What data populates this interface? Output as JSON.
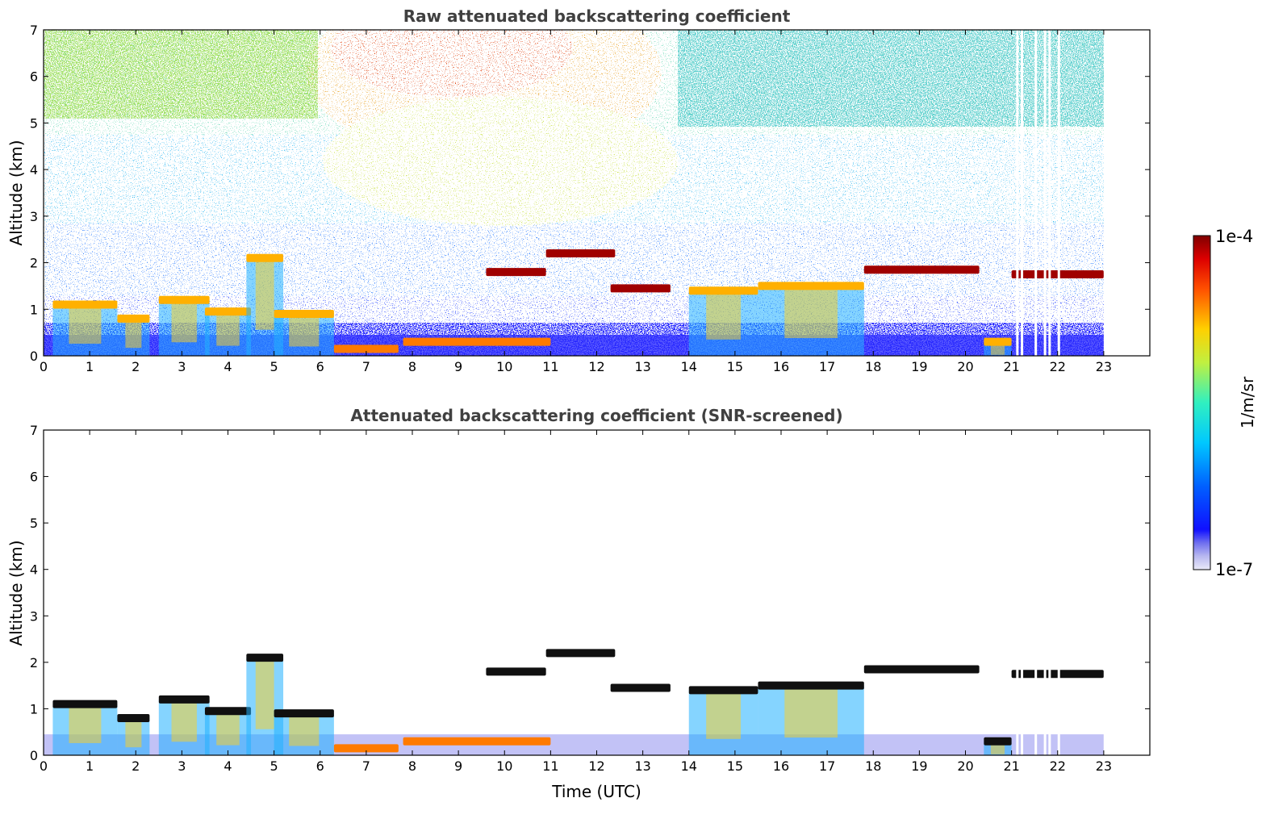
{
  "chart_data": [
    {
      "type": "heatmap",
      "title": "Raw attenuated backscattering coefficient",
      "xlabel": "",
      "ylabel": "Altitude (km)",
      "xlim": [
        0,
        24
      ],
      "ylim": [
        0,
        7
      ],
      "x_ticks": [
        "0",
        "1",
        "2",
        "3",
        "4",
        "5",
        "6",
        "7",
        "8",
        "9",
        "10",
        "11",
        "12",
        "13",
        "14",
        "15",
        "16",
        "17",
        "18",
        "19",
        "20",
        "21",
        "22",
        "23"
      ],
      "y_ticks": [
        "0",
        "1",
        "2",
        "3",
        "4",
        "5",
        "6",
        "7"
      ],
      "data_extent_hours": [
        0,
        23
      ],
      "layers": [
        {
          "kind": "cloud_base",
          "start": 0.2,
          "end": 1.6,
          "altitude": 1.1
        },
        {
          "kind": "cloud_base",
          "start": 1.6,
          "end": 2.3,
          "altitude": 0.8
        },
        {
          "kind": "cloud_base",
          "start": 2.5,
          "end": 3.6,
          "altitude": 1.2
        },
        {
          "kind": "cloud_base",
          "start": 3.5,
          "end": 4.5,
          "altitude": 0.95
        },
        {
          "kind": "cloud_base",
          "start": 4.4,
          "end": 5.2,
          "altitude": 2.1
        },
        {
          "kind": "cloud_base",
          "start": 5.0,
          "end": 6.3,
          "altitude": 0.9
        },
        {
          "kind": "boundary_layer",
          "start": 6.3,
          "end": 7.7,
          "altitude": 0.15
        },
        {
          "kind": "boundary_layer",
          "start": 7.8,
          "end": 11.0,
          "altitude": 0.3
        },
        {
          "kind": "elevated_layer",
          "start": 9.6,
          "end": 10.9,
          "altitude": 1.8
        },
        {
          "kind": "elevated_layer",
          "start": 10.9,
          "end": 12.4,
          "altitude": 2.2
        },
        {
          "kind": "elevated_layer",
          "start": 12.3,
          "end": 13.6,
          "altitude": 1.45
        },
        {
          "kind": "cloud_base",
          "start": 14.0,
          "end": 15.5,
          "altitude": 1.4
        },
        {
          "kind": "cloud_base",
          "start": 15.5,
          "end": 17.8,
          "altitude": 1.5
        },
        {
          "kind": "elevated_layer",
          "start": 17.8,
          "end": 20.3,
          "altitude": 1.85
        },
        {
          "kind": "cloud_base",
          "start": 20.4,
          "end": 21.0,
          "altitude": 0.3
        },
        {
          "kind": "elevated_layer",
          "start": 21.0,
          "end": 23.0,
          "altitude": 1.75
        }
      ],
      "missing_profile_times": [
        21.1,
        21.2,
        21.5,
        21.7,
        21.8,
        22.0
      ]
    },
    {
      "type": "heatmap",
      "title": "Attenuated backscattering coefficient (SNR-screened)",
      "xlabel": "Time (UTC)",
      "ylabel": "Altitude (km)",
      "xlim": [
        0,
        24
      ],
      "ylim": [
        0,
        7
      ],
      "x_ticks": [
        "0",
        "1",
        "2",
        "3",
        "4",
        "5",
        "6",
        "7",
        "8",
        "9",
        "10",
        "11",
        "12",
        "13",
        "14",
        "15",
        "16",
        "17",
        "18",
        "19",
        "20",
        "21",
        "22",
        "23"
      ],
      "y_ticks": [
        "0",
        "1",
        "2",
        "3",
        "4",
        "5",
        "6",
        "7"
      ],
      "data_extent_hours": [
        0,
        23
      ],
      "max_signal_altitude_km": 2.5
    }
  ],
  "colorbar": {
    "label": "1/m/sr",
    "max_label": "1e-4",
    "min_label": "1e-7",
    "scale": "log",
    "colormap": "jet"
  },
  "colors": {
    "title": "#404040",
    "low": "#0000ff",
    "high": "#8b0000"
  }
}
